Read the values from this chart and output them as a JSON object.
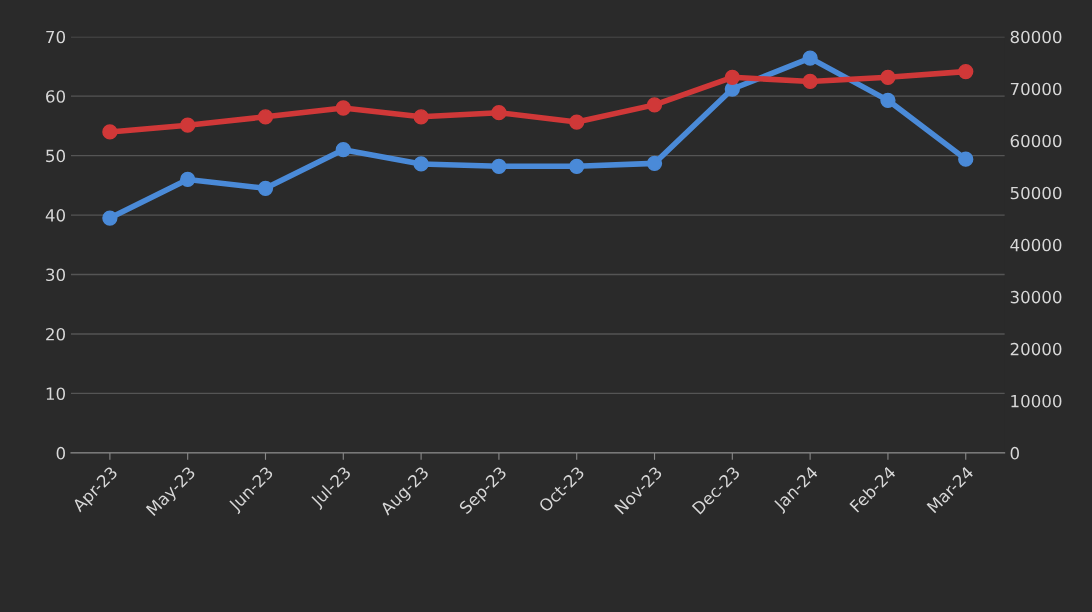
{
  "chart_data": {
    "type": "line",
    "categories": [
      "Apr-23",
      "May-23",
      "Jun-23",
      "Jul-23",
      "Aug-23",
      "Sep-23",
      "Oct-23",
      "Nov-23",
      "Dec-23",
      "Jan-24",
      "Feb-24",
      "Mar-24"
    ],
    "series": [
      {
        "color": "#4a8ad8",
        "values": [
          39.5,
          46,
          44.5,
          51,
          48.6,
          48.2,
          48.2,
          48.7,
          61.2,
          66.4,
          59.3,
          49.4
        ]
      },
      {
        "color": "#d03838",
        "axis": "y2",
        "values": [
          61700,
          63000,
          64600,
          66300,
          64600,
          65400,
          63600,
          66900,
          72200,
          71400,
          72200,
          73300
        ]
      }
    ],
    "ylim": [
      0,
      70
    ],
    "yticks": [
      0,
      10,
      20,
      30,
      40,
      50,
      60,
      70
    ],
    "y2lim": [
      0,
      80000
    ],
    "y2ticks": [
      0,
      10000,
      20000,
      30000,
      40000,
      50000,
      60000,
      70000,
      80000
    ],
    "grid": "y",
    "marker": "circle",
    "line_style": "solid"
  }
}
